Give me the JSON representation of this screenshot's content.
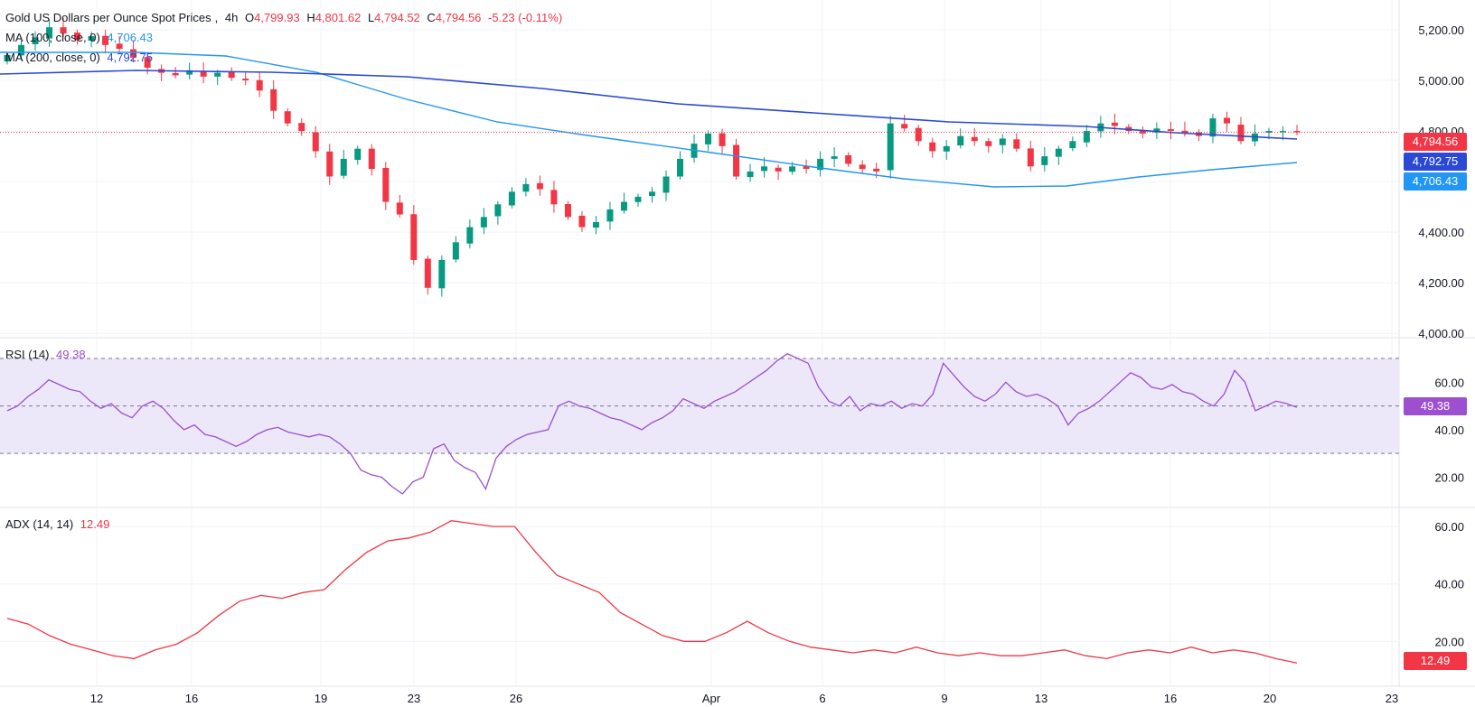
{
  "header": {
    "symbol": "Gold US Dollars per Ounce Spot Prices",
    "interval": "4h",
    "open_label": "O",
    "open": "4,799.93",
    "high_label": "H",
    "high": "4,801.62",
    "low_label": "L",
    "low": "4,794.52",
    "close_label": "C",
    "close": "4,794.56",
    "change": "-5.23 (-0.11%)"
  },
  "legends": {
    "ma100_label": "MA (100, close, 0)",
    "ma100_value": "4,706.43",
    "ma200_label": "MA (200, close, 0)",
    "ma200_value": "4,792.75",
    "rsi_label": "RSI (14)",
    "rsi_value": "49.38",
    "adx_label": "ADX (14, 14)",
    "adx_value": "12.49"
  },
  "tags": {
    "close": "4,794.56",
    "ma200": "4,792.75",
    "ma100": "4,706.43",
    "rsi": "49.38",
    "adx": "12.49"
  },
  "colors": {
    "up": "#089981",
    "down": "#f23645",
    "ma100": "#2196f3",
    "ma200": "#2a49d6",
    "rsi": "#9c4fcf",
    "rsi_band": "#ede7fa",
    "adx": "#f23645",
    "grid": "#f0f3fa",
    "text": "#131722"
  },
  "chart_data": [
    {
      "type": "candlestick",
      "title": "Gold US Dollars per Ounce Spot Prices, 4h",
      "x_tick_labels": [
        "12",
        "16",
        "19",
        "23",
        "26",
        "Apr",
        "6",
        "9",
        "13",
        "16",
        "20",
        "23"
      ],
      "y_tick_labels": [
        "5,200.00",
        "5,000.00",
        "4,800.00",
        "4,600.00",
        "4,400.00",
        "4,200.00",
        "4,000.00"
      ],
      "ylim": [
        3990,
        5300
      ],
      "price_series": [
        5100,
        5140,
        5170,
        5210,
        5185,
        5160,
        5175,
        5140,
        5125,
        5090,
        5050,
        5030,
        5020,
        5040,
        5015,
        5030,
        5010,
        5000,
        4960,
        4880,
        4830,
        4800,
        4720,
        4620,
        4690,
        4730,
        4650,
        4520,
        4470,
        4290,
        4180,
        4290,
        4360,
        4420,
        4460,
        4510,
        4560,
        4590,
        4570,
        4510,
        4460,
        4420,
        4440,
        4490,
        4520,
        4540,
        4560,
        4620,
        4690,
        4750,
        4790,
        4740,
        4620,
        4640,
        4660,
        4640,
        4660,
        4650,
        4690,
        4700,
        4670,
        4650,
        4640,
        4830,
        4810,
        4760,
        4720,
        4740,
        4780,
        4760,
        4740,
        4770,
        4730,
        4660,
        4700,
        4730,
        4760,
        4800,
        4830,
        4820,
        4800,
        4790,
        4810,
        4800,
        4790,
        4780,
        4850,
        4830,
        4760,
        4790,
        4800,
        4800,
        4795
      ],
      "ma100_last": 4706.43,
      "ma200_last": 4792.75,
      "last_close": 4794.56
    },
    {
      "type": "line",
      "name": "RSI (14)",
      "y_tick_labels": [
        "60.00",
        "40.00",
        "20.00"
      ],
      "ylim": [
        8,
        78
      ],
      "bands": [
        30,
        50,
        70
      ],
      "values": [
        48,
        50,
        54,
        57,
        61,
        59,
        57,
        56,
        52,
        49,
        51,
        47,
        45,
        50,
        52,
        49,
        44,
        40,
        42,
        38,
        37,
        35,
        33,
        35,
        38,
        40,
        41,
        39,
        38,
        37,
        38,
        37,
        34,
        30,
        23,
        21,
        20,
        16,
        13,
        18,
        20,
        32,
        34,
        27,
        24,
        22,
        15,
        28,
        33,
        36,
        38,
        39,
        40,
        50,
        52,
        50,
        49,
        47,
        45,
        44,
        42,
        40,
        43,
        45,
        48,
        53,
        51,
        49,
        52,
        54,
        56,
        59,
        62,
        65,
        69,
        72,
        70,
        68,
        58,
        52,
        50,
        54,
        48,
        51,
        50,
        52,
        49,
        51,
        50,
        55,
        68,
        63,
        58,
        54,
        52,
        55,
        60,
        56,
        54,
        55,
        53,
        50,
        42,
        47,
        49,
        52,
        56,
        60,
        64,
        62,
        58,
        57,
        59,
        56,
        55,
        52,
        50,
        55,
        65,
        60,
        48,
        50,
        52,
        51,
        49.38
      ]
    },
    {
      "type": "line",
      "name": "ADX (14, 14)",
      "y_tick_labels": [
        "60.00",
        "40.00",
        "20.00"
      ],
      "ylim": [
        5,
        66
      ],
      "values": [
        28,
        26,
        22,
        19,
        17,
        15,
        14,
        17,
        19,
        23,
        29,
        34,
        36,
        35,
        37,
        38,
        45,
        51,
        55,
        56,
        58,
        62,
        61,
        60,
        60,
        51,
        43,
        40,
        37,
        30,
        26,
        22,
        20,
        20,
        23,
        27,
        23,
        20,
        18,
        17,
        16,
        17,
        16,
        18,
        16,
        15,
        16,
        15,
        15,
        16,
        17,
        15,
        14,
        16,
        17,
        16,
        18,
        16,
        17,
        16,
        14,
        12.49
      ]
    }
  ]
}
